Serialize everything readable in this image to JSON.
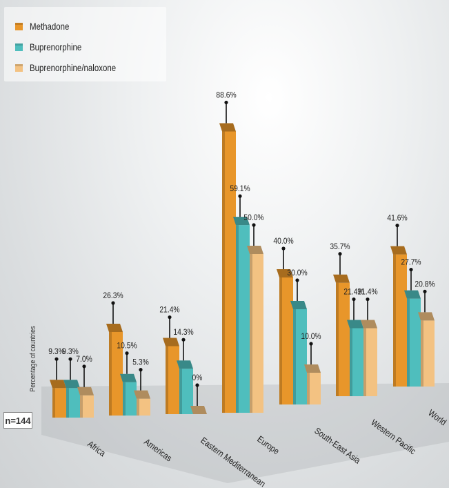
{
  "chart_data": {
    "type": "bar",
    "categories": [
      "Africa",
      "Americas",
      "Eastern Mediterranean",
      "Europe",
      "South-East Asia",
      "Western Pacific",
      "World"
    ],
    "series": [
      {
        "name": "Methadone",
        "color": "#E8962A",
        "values": [
          9.3,
          26.3,
          21.4,
          88.6,
          40.0,
          35.7,
          41.6
        ],
        "labels": [
          "9.3%",
          "26.3%",
          "21.4%",
          "88.6%",
          "40.0%",
          "35.7%",
          "41.6%"
        ]
      },
      {
        "name": "Buprenorphine",
        "color": "#4FBEBD",
        "values": [
          9.3,
          10.5,
          14.3,
          59.1,
          30.0,
          21.4,
          27.7
        ],
        "labels": [
          "9.3%",
          "10.5%",
          "14.3%",
          "59.1%",
          "30.0%",
          "21.4%",
          "27.7%"
        ]
      },
      {
        "name": "Buprenorphine/naloxone",
        "color": "#F3C282",
        "values": [
          7.0,
          5.3,
          0,
          50.0,
          10.0,
          21.4,
          20.8
        ],
        "labels": [
          "7.0%",
          "5.3%",
          "0%",
          "50.0%",
          "10.0%",
          "21.4%",
          "20.8%"
        ]
      }
    ],
    "ylabel": "Percentage of countries",
    "note": "n=144",
    "grid": false,
    "legend_position": "top-left"
  }
}
